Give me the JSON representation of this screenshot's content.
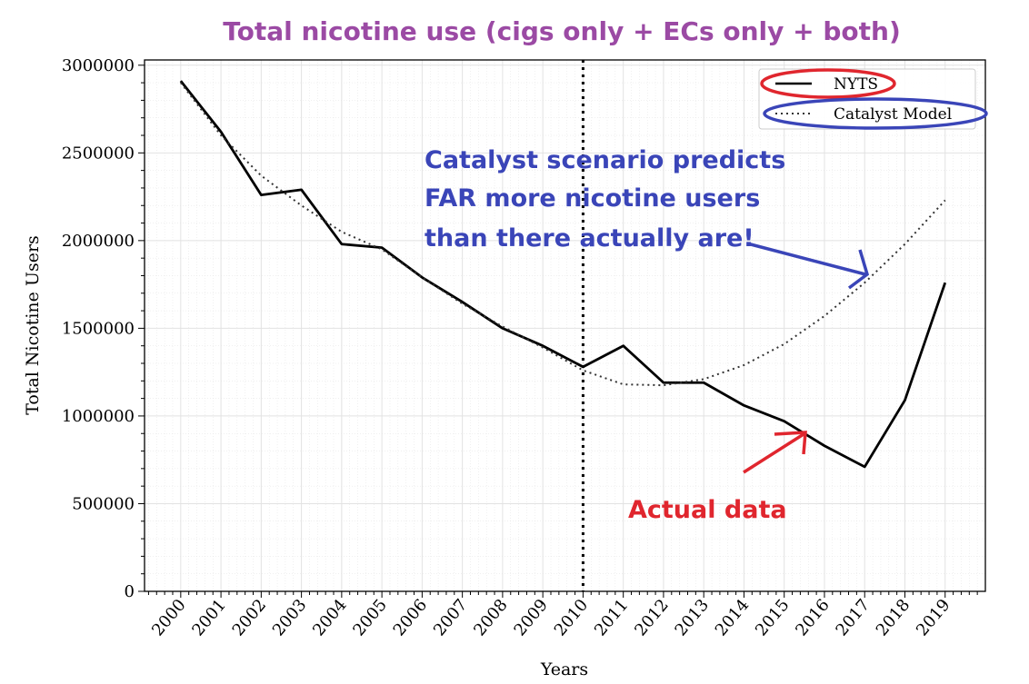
{
  "chart_data": {
    "type": "line",
    "title": "Total nicotine use (cigs only + ECs only + both)",
    "xlabel": "Years",
    "ylabel": "Total Nicotine Users",
    "x": [
      2000,
      2001,
      2002,
      2003,
      2004,
      2005,
      2006,
      2007,
      2008,
      2009,
      2010,
      2011,
      2012,
      2013,
      2014,
      2015,
      2016,
      2017,
      2018,
      2019
    ],
    "xtick_labels": [
      "2000",
      "2001",
      "2002",
      "2003",
      "2004",
      "2005",
      "2006",
      "2007",
      "2008",
      "2009",
      "2010",
      "2011",
      "2012",
      "2013",
      "2014",
      "2015",
      "2016",
      "2017",
      "2018",
      "2019"
    ],
    "yticks": [
      0,
      500000,
      1000000,
      1500000,
      2000000,
      2500000,
      3000000
    ],
    "ytick_labels": [
      "0",
      "500000",
      "1000000",
      "1500000",
      "2000000",
      "2500000",
      "3000000"
    ],
    "xlim": [
      1999.1,
      2020.0
    ],
    "ylim": [
      0,
      3030000
    ],
    "grid": true,
    "legend_position": "top-right",
    "vertical_marker_x": 2010,
    "series": [
      {
        "name": "NYTS",
        "style": "solid",
        "color": "#000000",
        "values": [
          2910000,
          2620000,
          2260000,
          2290000,
          1980000,
          1960000,
          1790000,
          1650000,
          1500000,
          1400000,
          1280000,
          1400000,
          1190000,
          1190000,
          1060000,
          970000,
          830000,
          710000,
          1090000,
          1760000
        ]
      },
      {
        "name": "Catalyst Model",
        "style": "dotted",
        "color": "#333333",
        "values": [
          2900000,
          2600000,
          2370000,
          2200000,
          2050000,
          1950000,
          1790000,
          1640000,
          1510000,
          1390000,
          1260000,
          1180000,
          1175000,
          1210000,
          1290000,
          1410000,
          1570000,
          1760000,
          1980000,
          2230000
        ]
      }
    ],
    "annotations": [
      {
        "id": "catalyst-note",
        "lines": [
          "Catalyst scenario predicts",
          "FAR more nicotine users",
          "than there actually are!"
        ],
        "color": "#3a45b8",
        "arrow_to": [
          2017,
          1780000
        ]
      },
      {
        "id": "actual-note",
        "lines": [
          "Actual data"
        ],
        "color": "#e0262e",
        "arrow_to": [
          2015.5,
          900000
        ]
      }
    ],
    "colors": {
      "title": "#9b4aa4",
      "blue_note": "#3a45b8",
      "red_note": "#e0262e",
      "grid": "#e2e2e2"
    }
  }
}
